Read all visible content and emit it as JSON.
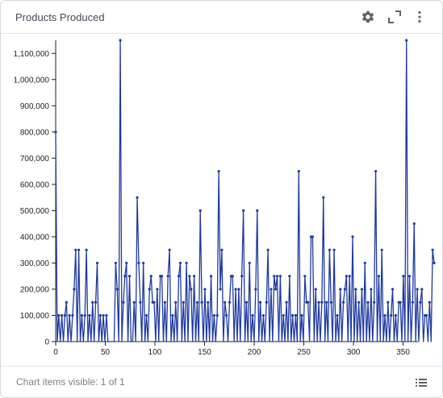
{
  "widget": {
    "title": "Products Produced",
    "footer_text": "Chart items visible: 1 of 1"
  },
  "icons": {
    "settings": "gear-icon",
    "expand": "expand-icon",
    "more": "more-vertical-icon",
    "legend": "legend-list-icon"
  },
  "colors": {
    "series": "#1e3a9f",
    "axis": "#222222",
    "text": "#444b55",
    "footer_text": "#7a8089"
  },
  "chart_data": {
    "type": "line",
    "title": "",
    "xlabel": "",
    "ylabel": "",
    "xlim": [
      0,
      365
    ],
    "ylim": [
      0,
      1150000
    ],
    "x_ticks": [
      0,
      50,
      100,
      150,
      200,
      250,
      300,
      350
    ],
    "y_ticks": [
      0,
      100000,
      200000,
      300000,
      400000,
      500000,
      600000,
      700000,
      800000,
      900000,
      1000000,
      1100000
    ],
    "x_tick_labels": [
      "0",
      "50",
      "100",
      "150",
      "200",
      "250",
      "300",
      "350"
    ],
    "y_tick_labels": [
      "0",
      "100,000",
      "200,000",
      "300,000",
      "400,000",
      "500,000",
      "600,000",
      "700,000",
      "800,000",
      "900,000",
      "1,000,000",
      "1,100,000"
    ],
    "grid": false,
    "series": [
      {
        "values": [
          800000,
          0,
          100000,
          0,
          100000,
          0,
          100000,
          150000,
          0,
          100000,
          0,
          100000,
          200000,
          350000,
          0,
          350000,
          0,
          100000,
          0,
          100000,
          350000,
          0,
          100000,
          0,
          150000,
          0,
          150000,
          300000,
          0,
          100000,
          0,
          100000,
          0,
          100000,
          0,
          0,
          0,
          0,
          0,
          300000,
          200000,
          0,
          1150000,
          0,
          150000,
          250000,
          300000,
          0,
          250000,
          0,
          0,
          150000,
          0,
          550000,
          300000,
          150000,
          0,
          300000,
          0,
          100000,
          0,
          200000,
          250000,
          150000,
          150000,
          0,
          200000,
          0,
          250000,
          250000,
          0,
          150000,
          0,
          250000,
          350000,
          0,
          100000,
          0,
          150000,
          0,
          250000,
          300000,
          0,
          150000,
          0,
          300000,
          0,
          250000,
          200000,
          0,
          250000,
          0,
          150000,
          0,
          500000,
          150000,
          0,
          200000,
          0,
          150000,
          0,
          250000,
          0,
          100000,
          0,
          100000,
          650000,
          200000,
          350000,
          0,
          150000,
          100000,
          0,
          150000,
          250000,
          250000,
          0,
          200000,
          0,
          200000,
          0,
          250000,
          500000,
          0,
          150000,
          0,
          300000,
          0,
          100000,
          0,
          200000,
          500000,
          0,
          150000,
          0,
          100000,
          0,
          150000,
          350000,
          0,
          200000,
          0,
          250000,
          200000,
          250000,
          0,
          250000,
          0,
          100000,
          0,
          150000,
          0,
          250000,
          0,
          100000,
          0,
          100000,
          0,
          650000,
          0,
          100000,
          0,
          250000,
          150000,
          150000,
          0,
          400000,
          400000,
          0,
          200000,
          0,
          150000,
          0,
          150000,
          550000,
          0,
          150000,
          0,
          350000,
          150000,
          0,
          350000,
          0,
          100000,
          0,
          200000,
          0,
          150000,
          200000,
          250000,
          0,
          250000,
          0,
          400000,
          0,
          200000,
          0,
          150000,
          0,
          200000,
          0,
          300000,
          0,
          150000,
          0,
          200000,
          0,
          150000,
          650000,
          0,
          250000,
          0,
          350000,
          0,
          100000,
          0,
          150000,
          0,
          100000,
          200000,
          0,
          100000,
          0,
          150000,
          150000,
          0,
          250000,
          0,
          1150000,
          0,
          250000,
          0,
          150000,
          450000,
          0,
          200000,
          0,
          150000,
          200000,
          0,
          100000,
          100000,
          0,
          150000,
          0,
          350000,
          300000
        ],
        "x_start": 0,
        "x_step": 1.55
      }
    ]
  }
}
